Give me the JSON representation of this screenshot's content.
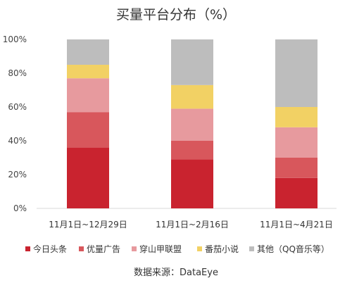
{
  "chart_data": {
    "type": "bar",
    "stacked": true,
    "title": "买量平台分布（%）",
    "categories": [
      "11月1日~12月29日",
      "11月1日~2月16日",
      "11月1日~4月21日"
    ],
    "series": [
      {
        "name": "今日头条",
        "color": "#c9232f",
        "values": [
          36,
          29,
          18
        ]
      },
      {
        "name": "优量广告",
        "color": "#d8575c",
        "values": [
          21,
          11,
          12
        ]
      },
      {
        "name": "穿山甲联盟",
        "color": "#e79a9e",
        "values": [
          20,
          19,
          18
        ]
      },
      {
        "name": "番茄小说",
        "color": "#f2d164",
        "values": [
          8,
          14,
          12
        ]
      },
      {
        "name": "其他（QQ音乐等）",
        "color": "#bdbdbd",
        "values": [
          15,
          27,
          40
        ]
      }
    ],
    "y_ticks": [
      "0%",
      "20%",
      "40%",
      "60%",
      "80%",
      "100%"
    ],
    "ylim": [
      0,
      100
    ],
    "grid": false,
    "legend_position": "bottom"
  },
  "source_label": "数据来源：DataEye"
}
